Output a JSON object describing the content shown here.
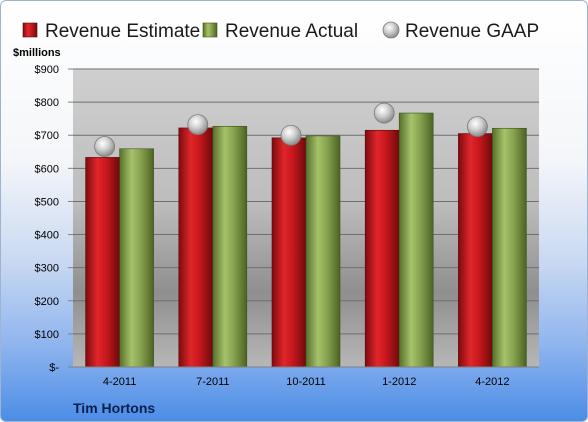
{
  "chart_data": {
    "type": "bar",
    "ylabel": "$millions",
    "company": "Tim Hortons",
    "categories": [
      "4-2011",
      "7-2011",
      "10-2011",
      "1-2012",
      "4-2012"
    ],
    "ylim": [
      0,
      900
    ],
    "yticks": [
      0,
      100,
      200,
      300,
      400,
      500,
      600,
      700,
      800,
      900
    ],
    "ytick_labels": [
      "$-",
      "$100",
      "$200",
      "$300",
      "$400",
      "$500",
      "$600",
      "$700",
      "$800",
      "$900"
    ],
    "grid": true,
    "legend_position": "top",
    "series": [
      {
        "name": "Revenue Estimate",
        "kind": "bar",
        "color": "#c0161b",
        "values": [
          633,
          722,
          692,
          715,
          705
        ]
      },
      {
        "name": "Revenue Actual",
        "kind": "bar",
        "color": "#8aa551",
        "values": [
          659,
          727,
          698,
          767,
          721
        ]
      },
      {
        "name": "Revenue GAAP",
        "kind": "marker",
        "color": "#c8c8c8",
        "values": [
          666,
          732,
          700,
          767,
          726
        ]
      }
    ]
  }
}
